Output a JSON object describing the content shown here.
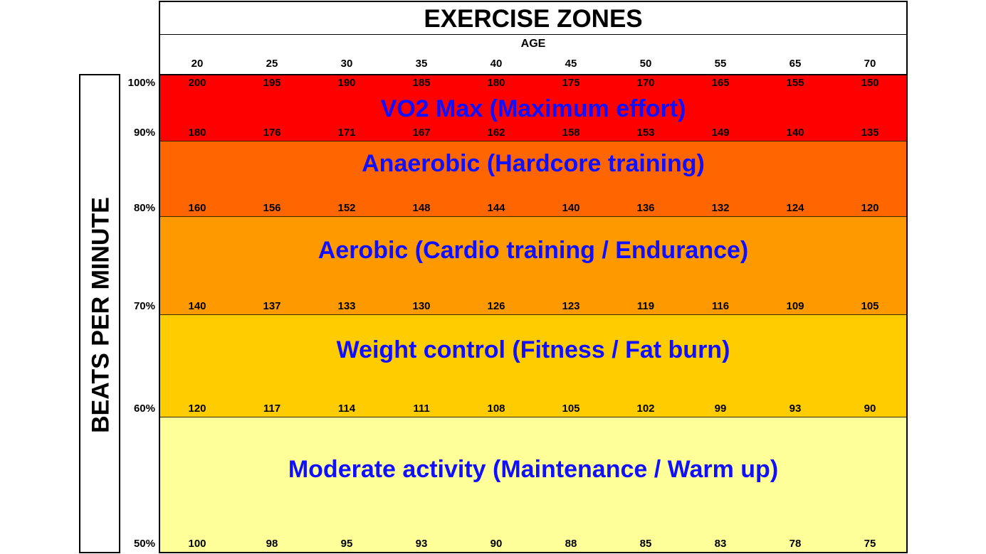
{
  "chart_data": {
    "type": "table",
    "title": "EXERCISE ZONES",
    "xlabel": "AGE",
    "ylabel": "BEATS PER MINUTE",
    "ages": [
      "20",
      "25",
      "30",
      "35",
      "40",
      "45",
      "50",
      "55",
      "65",
      "70"
    ],
    "rows": [
      {
        "percent": "100%",
        "values": [
          200,
          195,
          190,
          185,
          180,
          175,
          170,
          165,
          155,
          150
        ]
      },
      {
        "percent": "90%",
        "values": [
          180,
          176,
          171,
          167,
          162,
          158,
          153,
          149,
          140,
          135
        ]
      },
      {
        "percent": "80%",
        "values": [
          160,
          156,
          152,
          148,
          144,
          140,
          136,
          132,
          124,
          120
        ]
      },
      {
        "percent": "70%",
        "values": [
          140,
          137,
          133,
          130,
          126,
          123,
          119,
          116,
          109,
          105
        ]
      },
      {
        "percent": "60%",
        "values": [
          120,
          117,
          114,
          111,
          108,
          105,
          102,
          99,
          93,
          90
        ]
      },
      {
        "percent": "50%",
        "values": [
          100,
          98,
          95,
          93,
          90,
          88,
          85,
          83,
          78,
          75
        ]
      }
    ],
    "zones": [
      {
        "name": "VO2 Max (Maximum effort)",
        "range": [
          "90%",
          "100%"
        ],
        "color": "#ff0000"
      },
      {
        "name": "Anaerobic (Hardcore training)",
        "range": [
          "80%",
          "90%"
        ],
        "color": "#ff6600"
      },
      {
        "name": "Aerobic (Cardio training / Endurance)",
        "range": [
          "70%",
          "80%"
        ],
        "color": "#ff9900"
      },
      {
        "name": "Weight control (Fitness / Fat burn)",
        "range": [
          "60%",
          "70%"
        ],
        "color": "#ffcc00"
      },
      {
        "name": "Moderate activity (Maintenance / Warm up)",
        "range": [
          "50%",
          "60%"
        ],
        "color": "#ffff99"
      }
    ],
    "zone_text_color": "#1010ff"
  }
}
